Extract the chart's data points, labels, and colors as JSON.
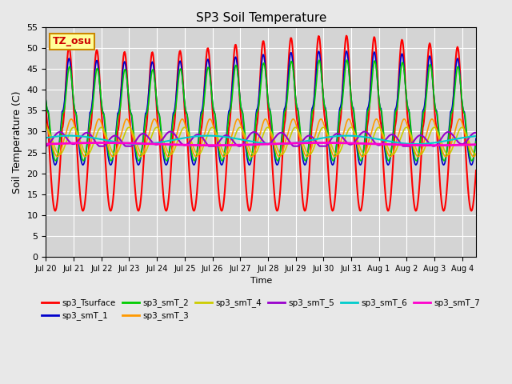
{
  "title": "SP3 Soil Temperature",
  "xlabel": "Time",
  "ylabel": "Soil Temperature (C)",
  "ylim": [
    0,
    55
  ],
  "yticks": [
    0,
    5,
    10,
    15,
    20,
    25,
    30,
    35,
    40,
    45,
    50,
    55
  ],
  "annotation": "TZ_osu",
  "background_color": "#e8e8e8",
  "plot_bg_color": "#d4d4d4",
  "series": [
    {
      "label": "sp3_Tsurface",
      "color": "#ff0000"
    },
    {
      "label": "sp3_smT_1",
      "color": "#0000cc"
    },
    {
      "label": "sp3_smT_2",
      "color": "#00cc00"
    },
    {
      "label": "sp3_smT_3",
      "color": "#ff9900"
    },
    {
      "label": "sp3_smT_4",
      "color": "#cccc00"
    },
    {
      "label": "sp3_smT_5",
      "color": "#9900cc"
    },
    {
      "label": "sp3_smT_6",
      "color": "#00cccc"
    },
    {
      "label": "sp3_smT_7",
      "color": "#ff00cc"
    }
  ],
  "date_labels": [
    "Jul 20",
    "Jul 21",
    "Jul 22",
    "Jul 23",
    "Jul 24",
    "Jul 25",
    "Jul 26",
    "Jul 27",
    "Jul 28",
    "Jul 29",
    "Jul 30",
    "Jul 31",
    "Aug 1",
    "Aug 2",
    "Aug 3",
    "Aug 4"
  ],
  "date_ticks": [
    0,
    1,
    2,
    3,
    4,
    5,
    6,
    7,
    8,
    9,
    10,
    11,
    12,
    13,
    14,
    15
  ],
  "legend_ncol": 6
}
